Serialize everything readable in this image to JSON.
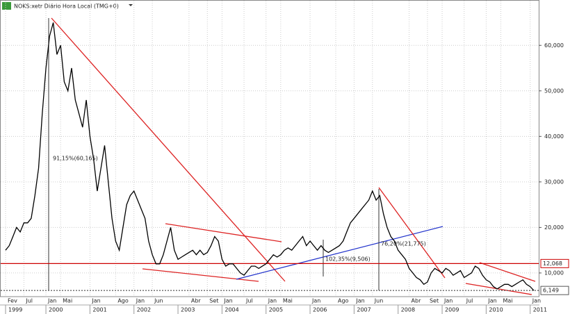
{
  "chart_data": {
    "type": "line",
    "title": "NOKS:xetr Diário Hora Local (TMG+0)",
    "categories": [
      "Fev",
      null,
      null,
      null,
      null,
      "Jul",
      null,
      null,
      null,
      null,
      null,
      "Jan",
      null,
      null,
      null,
      "Mai",
      null,
      null,
      null,
      null,
      null,
      null,
      null,
      "Jan",
      null,
      null,
      null,
      null,
      null,
      null,
      "Ago",
      null,
      null,
      null,
      null,
      "Jan",
      null,
      null,
      null,
      null,
      "Jun",
      null,
      null,
      null,
      null,
      null,
      null,
      null,
      null,
      null,
      "Abr",
      null,
      null,
      null,
      null,
      "Set",
      null,
      null,
      null,
      "Jan",
      null,
      null,
      null,
      null,
      null,
      "Jul",
      null,
      null,
      null,
      null,
      null,
      "Jan",
      null,
      null,
      null,
      "Mai",
      null,
      null,
      null,
      null,
      null,
      null,
      null,
      "Jan",
      null,
      null,
      null,
      null,
      null,
      null,
      "Ago",
      null,
      null,
      null,
      null,
      "Jan",
      null,
      null,
      null,
      null,
      "Jun",
      null,
      null,
      null,
      null,
      null,
      null,
      null,
      null,
      null,
      "Abr",
      null,
      null,
      null,
      null,
      "Set",
      null,
      null,
      null,
      "Jan",
      null,
      null,
      null,
      null,
      null,
      "Jul",
      null,
      null,
      null,
      null,
      null,
      "Jan",
      null,
      null,
      null,
      "Mai",
      null,
      null,
      null,
      null,
      null,
      null,
      null,
      "Jan",
      null
    ],
    "year_labels": [
      "1999",
      "2000",
      "2001",
      "2002",
      "2003",
      "2004",
      "2005",
      "2006",
      "2007",
      "2008",
      "2009",
      "2010",
      "2011"
    ],
    "series": [
      {
        "name": "NOKS:xetr",
        "color": "#000000",
        "values": [
          15000,
          16000,
          18000,
          20000,
          19000,
          21000,
          21000,
          22000,
          27000,
          33000,
          45000,
          55000,
          62000,
          65000,
          58000,
          60000,
          52000,
          50000,
          55000,
          48000,
          45000,
          42000,
          48000,
          40000,
          35000,
          28000,
          33000,
          38000,
          30000,
          22000,
          17000,
          15000,
          20000,
          25000,
          27000,
          28000,
          26000,
          24000,
          22000,
          17000,
          14000,
          12000,
          12000,
          14000,
          17000,
          20000,
          15000,
          13000,
          13500,
          14000,
          14500,
          15000,
          14000,
          15000,
          14000,
          14500,
          16000,
          18000,
          17000,
          13000,
          11500,
          12000,
          12000,
          11000,
          10000,
          9500,
          10500,
          11500,
          11500,
          11000,
          11500,
          12000,
          13000,
          14000,
          13500,
          14000,
          15000,
          15500,
          15000,
          16000,
          17000,
          18000,
          16000,
          17000,
          16000,
          15000,
          16000,
          15000,
          14500,
          15000,
          15500,
          16000,
          17000,
          19000,
          21000,
          22000,
          23000,
          24000,
          25000,
          26000,
          28000,
          26000,
          27000,
          23000,
          20000,
          18000,
          17000,
          15000,
          14000,
          13000,
          11000,
          10000,
          9000,
          8500,
          7500,
          8000,
          10000,
          11000,
          10500,
          10000,
          11000,
          10500,
          9500,
          10000,
          10500,
          9000,
          9500,
          10000,
          11500,
          11000,
          9500,
          8500,
          8000,
          7000,
          6500,
          7000,
          7500,
          7500,
          7000,
          7500,
          8000,
          8500,
          7500,
          7000,
          6149
        ]
      }
    ],
    "ylim": [
      4800,
      69500
    ],
    "yticks": [
      {
        "value": 10000,
        "label": "10,000"
      },
      {
        "value": 20000,
        "label": "20,000"
      },
      {
        "value": 30000,
        "label": "30,000"
      },
      {
        "value": 40000,
        "label": "40,000"
      },
      {
        "value": 50000,
        "label": "50,000"
      },
      {
        "value": 60000,
        "label": "60,000"
      }
    ],
    "grid": true,
    "levels": [
      {
        "value": 12068,
        "label": "12,068",
        "color": "#cc0000"
      },
      {
        "value": 6149,
        "label": "6,149",
        "color": "#555555"
      }
    ],
    "annotations": [
      "91,15%(60,165)",
      "102,35%(9,506)",
      "76,20%(21,775)"
    ]
  }
}
